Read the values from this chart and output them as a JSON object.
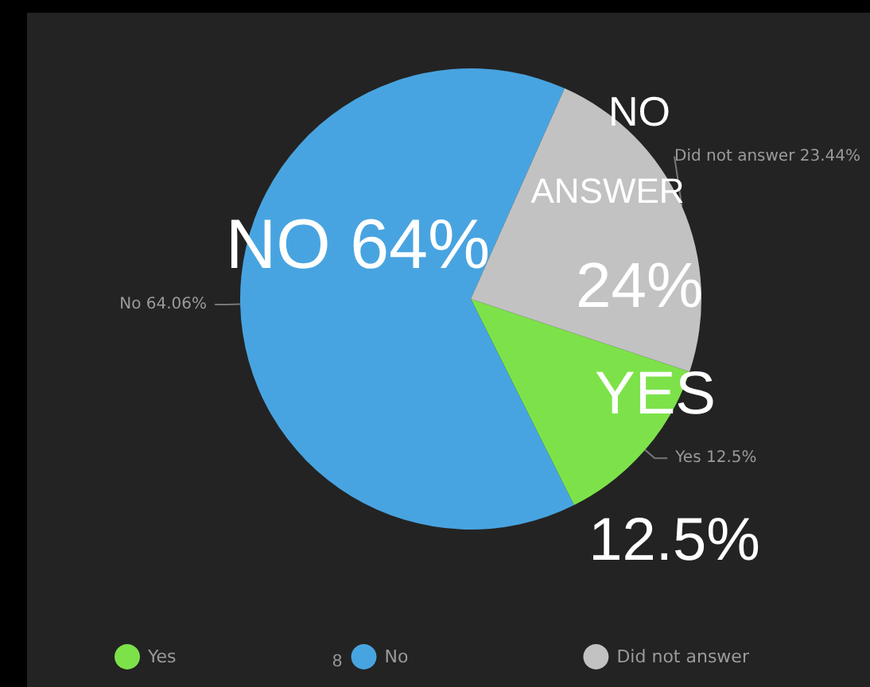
{
  "chart_data": {
    "type": "pie",
    "categories": [
      "Yes",
      "No",
      "Did not answer"
    ],
    "values": [
      12.5,
      64.06,
      23.44
    ],
    "colors": [
      "#7de24a",
      "#48a4e0",
      "#c2c2c2"
    ],
    "value_labels": [
      "Yes 12.5%",
      "No 64.06%",
      "Did not answer 23.44%"
    ],
    "legend": "bottom left",
    "annotations": [
      "NO 64%",
      "NO",
      "ANSWER",
      "24%",
      "YES",
      "12.5%",
      "8"
    ]
  }
}
